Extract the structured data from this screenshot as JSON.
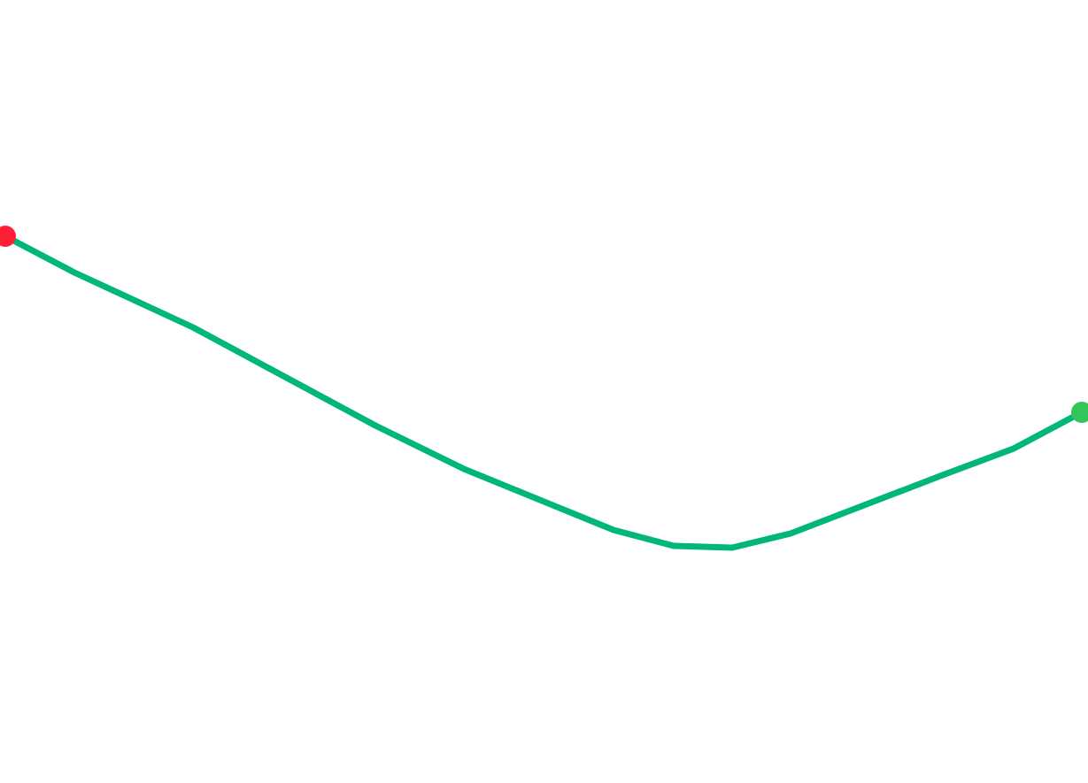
{
  "route": {
    "line_color": "#00b67a",
    "start_marker": {
      "icon": "start-point-marker",
      "color": "#ff2038"
    },
    "end_marker": {
      "icon": "end-point-marker",
      "color": "#34c55a"
    }
  }
}
